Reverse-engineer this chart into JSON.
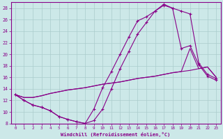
{
  "xlabel": "Windchill (Refroidissement éolien,°C)",
  "xlim": [
    -0.5,
    23.5
  ],
  "ylim": [
    8,
    29
  ],
  "xticks": [
    0,
    1,
    2,
    3,
    4,
    5,
    6,
    7,
    8,
    9,
    10,
    11,
    12,
    13,
    14,
    15,
    16,
    17,
    18,
    19,
    20,
    21,
    22,
    23
  ],
  "yticks": [
    8,
    10,
    12,
    14,
    16,
    18,
    20,
    22,
    24,
    26,
    28
  ],
  "bg_color": "#cce8e8",
  "grid_color": "#aacccc",
  "line_color": "#880088",
  "curve1_x": [
    0,
    1,
    2,
    3,
    4,
    5,
    6,
    7,
    8,
    9,
    10,
    11,
    12,
    13,
    14,
    15,
    16,
    17,
    18,
    19,
    20,
    21,
    22,
    23
  ],
  "curve1_y": [
    13.0,
    12.0,
    11.2,
    10.8,
    10.2,
    9.2,
    8.7,
    8.3,
    8.0,
    8.5,
    10.5,
    14.0,
    17.5,
    20.5,
    23.5,
    25.5,
    27.5,
    28.5,
    28.0,
    27.5,
    27.0,
    18.5,
    16.5,
    15.8
  ],
  "curve2_x": [
    0,
    1,
    2,
    3,
    4,
    5,
    6,
    7,
    8,
    9,
    10,
    11,
    12,
    13,
    14,
    15,
    16,
    17,
    18,
    19,
    20,
    21,
    22,
    23
  ],
  "curve2_y": [
    13.0,
    12.0,
    11.2,
    10.8,
    10.2,
    9.2,
    8.7,
    8.3,
    8.0,
    10.5,
    14.2,
    17.0,
    20.0,
    23.0,
    25.8,
    26.5,
    27.5,
    28.7,
    28.0,
    21.0,
    21.5,
    18.2,
    16.2,
    15.5
  ],
  "curve3_x": [
    0,
    1,
    2,
    3,
    4,
    5,
    6,
    7,
    8,
    9,
    10,
    11,
    12,
    13,
    14,
    15,
    16,
    17,
    18,
    19,
    20,
    21,
    22,
    23
  ],
  "curve3_y": [
    13.0,
    12.5,
    12.5,
    12.8,
    13.2,
    13.5,
    13.8,
    14.0,
    14.2,
    14.5,
    14.8,
    15.0,
    15.2,
    15.5,
    15.8,
    16.0,
    16.2,
    16.5,
    16.8,
    17.0,
    17.2,
    17.5,
    17.8,
    16.0
  ],
  "curve4_x": [
    0,
    1,
    2,
    3,
    4,
    5,
    6,
    7,
    8,
    9,
    10,
    11,
    12,
    13,
    14,
    15,
    16,
    17,
    18,
    19,
    20,
    21,
    22,
    23
  ],
  "curve4_y": [
    13.0,
    12.5,
    12.5,
    12.8,
    13.2,
    13.5,
    13.8,
    14.0,
    14.2,
    14.5,
    14.8,
    15.0,
    15.2,
    15.5,
    15.8,
    16.0,
    16.2,
    16.5,
    16.8,
    17.0,
    21.0,
    17.5,
    17.8,
    16.0
  ]
}
